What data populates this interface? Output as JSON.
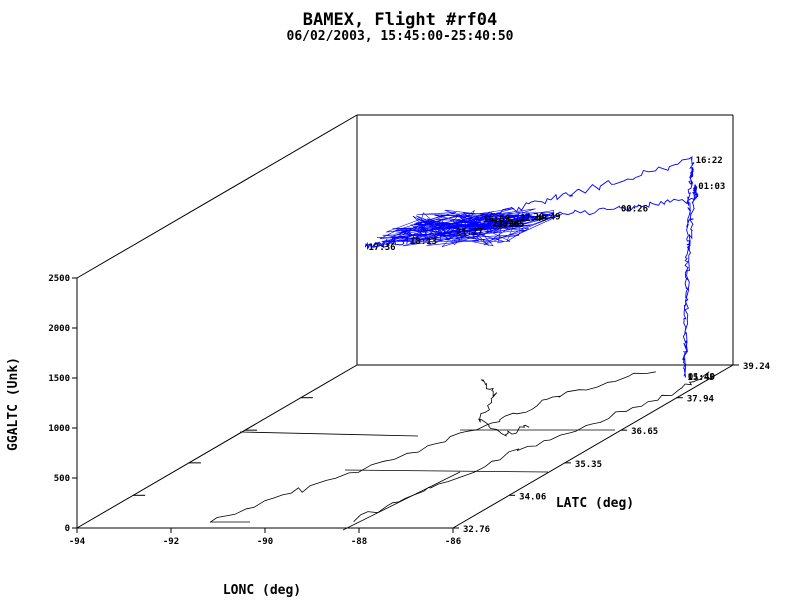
{
  "chart_data": {
    "type": "line",
    "projection": "3d-perspective",
    "title": "BAMEX, Flight #rf04",
    "subtitle": "06/02/2003, 15:45:00-25:40:50",
    "xlabel": "LONC (deg)",
    "ylabel": "LATC (deg)",
    "zlabel": "GGALTC (Unk)",
    "xlim": [
      -94,
      -86
    ],
    "ylim": [
      32.76,
      39.24
    ],
    "zlim": [
      0,
      2500
    ],
    "xticks": [
      "-94",
      "-92",
      "-90",
      "-88",
      "-86"
    ],
    "yticks": [
      "32.76",
      "34.06",
      "35.35",
      "36.65",
      "37.94",
      "39.24"
    ],
    "zticks": [
      "0",
      "500",
      "1000",
      "1500",
      "2000",
      "2500"
    ],
    "grid": false,
    "series": [
      {
        "color": "#0000ff",
        "points": [
          {
            "lon": -86.6,
            "lat": 38.77,
            "alt": 0,
            "label": "15:45"
          },
          {
            "lon": -86.6,
            "lat": 38.8,
            "alt": 600
          },
          {
            "lon": -86.58,
            "lat": 38.82,
            "alt": 1300
          },
          {
            "lon": -86.55,
            "lat": 38.85,
            "alt": 1900
          },
          {
            "lon": -86.5,
            "lat": 38.85,
            "alt": 2150,
            "label": "16:22"
          },
          {
            "lon": -88.2,
            "lat": 37.9,
            "alt": 2050
          },
          {
            "lon": -89.6,
            "lat": 37.3,
            "alt": 1950,
            "label": "16:59"
          },
          {
            "lon": -90.5,
            "lat": 36.9,
            "alt": 1900
          },
          {
            "lon": -91.3,
            "lat": 36.5,
            "alt": 1870,
            "label": "17:36"
          },
          {
            "lon": -90.6,
            "lat": 36.7,
            "alt": 1880,
            "label": "18:13"
          },
          {
            "lon": -89.9,
            "lat": 37.0,
            "alt": 1900,
            "label": "21:27"
          },
          {
            "lon": -89.3,
            "lat": 37.3,
            "alt": 1900,
            "label": "20:05"
          },
          {
            "lon": -88.8,
            "lat": 37.6,
            "alt": 1900,
            "label": "20:49"
          },
          {
            "lon": -89.0,
            "lat": 37.5,
            "alt": 1910,
            "label": "22:49"
          },
          {
            "lon": -89.4,
            "lat": 37.3,
            "alt": 1905,
            "label": "23:28"
          },
          {
            "lon": -89.4,
            "lat": 37.3,
            "alt": 1905,
            "label": "22:36"
          },
          {
            "lon": -87.4,
            "lat": 38.1,
            "alt": 1850,
            "label": "00:26"
          },
          {
            "lon": -86.2,
            "lat": 38.6,
            "alt": 1820
          },
          {
            "lon": -86.4,
            "lat": 38.8,
            "alt": 1900,
            "label": "01:03"
          },
          {
            "lon": -86.55,
            "lat": 38.82,
            "alt": 1300
          },
          {
            "lon": -86.6,
            "lat": 38.78,
            "alt": 0,
            "label": "01:40"
          }
        ]
      }
    ],
    "ground_projection": {
      "color": "#000000"
    },
    "time_labels": [
      "15:45",
      "16:22",
      "16:59",
      "17:36",
      "18:13",
      "20:05",
      "20:49",
      "21:27",
      "22:36",
      "22:49",
      "23:28",
      "00:26",
      "01:03",
      "01:40"
    ]
  }
}
